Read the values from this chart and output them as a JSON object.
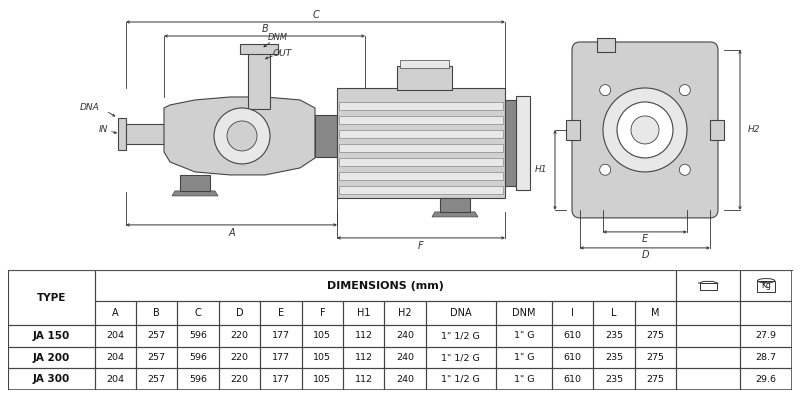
{
  "table_header_main": "DIMENSIONS (mm)",
  "col_headers": [
    "A",
    "B",
    "C",
    "D",
    "E",
    "F",
    "H1",
    "H2",
    "DNA",
    "DNM",
    "I",
    "L",
    "M"
  ],
  "type_col": "TYPE",
  "rows": [
    {
      "type": "JA 150",
      "A": "204",
      "B": "257",
      "C": "596",
      "D": "220",
      "E": "177",
      "F": "105",
      "H1": "112",
      "H2": "240",
      "DNA": "1\" 1/2 G",
      "DNM": "1\" G",
      "I": "610",
      "L": "235",
      "M": "275",
      "Kg": "27.9"
    },
    {
      "type": "JA 200",
      "A": "204",
      "B": "257",
      "C": "596",
      "D": "220",
      "E": "177",
      "F": "105",
      "H1": "112",
      "H2": "240",
      "DNA": "1\" 1/2 G",
      "DNM": "1\" G",
      "I": "610",
      "L": "235",
      "M": "275",
      "Kg": "28.7"
    },
    {
      "type": "JA 300",
      "A": "204",
      "B": "257",
      "C": "596",
      "D": "220",
      "E": "177",
      "F": "105",
      "H1": "112",
      "H2": "240",
      "DNA": "1\" 1/2 G",
      "DNM": "1\" G",
      "I": "610",
      "L": "235",
      "M": "275",
      "Kg": "29.6"
    }
  ],
  "bg_color": "#ffffff",
  "border_color": "#444444",
  "ann_color": "#333333",
  "gray_fill": "#d0d0d0",
  "dark_gray": "#888888",
  "light_gray": "#e8e8e8",
  "diagram_lw": 0.8
}
